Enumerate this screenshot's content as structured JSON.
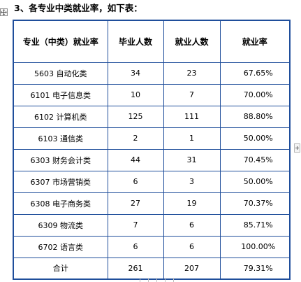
{
  "heading": "3、各专业中类就业率，如下表：",
  "table": {
    "headers": [
      "专业（中类）就业率",
      "毕业人数",
      "就业人数",
      "就业率"
    ],
    "rows": [
      [
        "5603 自动化类",
        "34",
        "23",
        "67.65%"
      ],
      [
        "6101 电子信息类",
        "10",
        "7",
        "70.00%"
      ],
      [
        "6102 计算机类",
        "125",
        "111",
        "88.80%"
      ],
      [
        "6103 通信类",
        "2",
        "1",
        "50.00%"
      ],
      [
        "6303 财务会计类",
        "44",
        "31",
        "70.45%"
      ],
      [
        "6307 市场营销类",
        "6",
        "3",
        "50.00%"
      ],
      [
        "6308 电子商务类",
        "27",
        "19",
        "70.37%"
      ],
      [
        "6309 物流类",
        "7",
        "6",
        "85.71%"
      ],
      [
        "6702 语言类",
        "6",
        "6",
        "100.00%"
      ],
      [
        "合计",
        "261",
        "207",
        "79.31%"
      ]
    ]
  },
  "colors": {
    "table_border": "#1f4e9b"
  },
  "icons": {
    "anchor": "move-anchor-icon",
    "side": "add-column-icon"
  }
}
